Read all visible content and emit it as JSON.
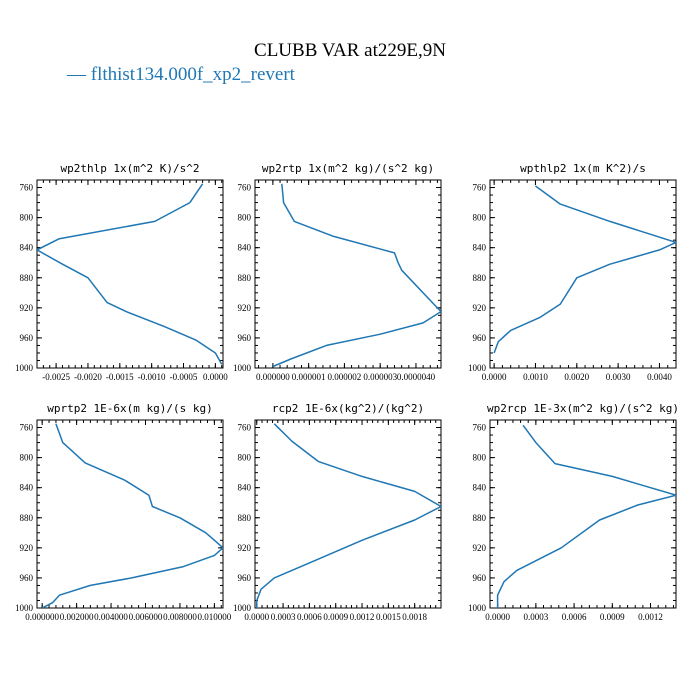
{
  "suptitle": "CLUBB VAR at229E,9N",
  "legend": {
    "label": "— flthist134.000f_xp2_revert",
    "color": "#1f77b4"
  },
  "series_color": "#1f77b4",
  "chart_data": [
    {
      "type": "line",
      "title": "wp2thlp  1x(m^2 K)/s^2",
      "xlim": [
        -0.0028,
        0.00012
      ],
      "ylim": [
        1000,
        750
      ],
      "xticks": [
        -0.0025,
        -0.002,
        -0.0015,
        -0.001,
        -0.0005,
        0.0
      ],
      "xtick_labels": [
        "-0.0025",
        "-0.0020",
        "-0.0015",
        "-0.0010",
        "-0.0005",
        "0.0000"
      ],
      "yticks": [
        760,
        800,
        840,
        880,
        920,
        960,
        1000
      ],
      "x": [
        -0.0002,
        -0.0004,
        -0.00095,
        -0.00245,
        -0.0028,
        -0.0024,
        -0.002,
        -0.0017,
        -0.0014,
        -0.0008,
        -0.0003,
        0.0,
        0.0001
      ],
      "y": [
        755,
        780,
        805,
        828,
        843,
        862,
        880,
        913,
        925,
        945,
        963,
        980,
        995
      ]
    },
    {
      "type": "line",
      "title": "wp2rtp  1x(m^2 kg)/(s^2 kg)",
      "xlim": [
        -5e-07,
        4.7e-06
      ],
      "ylim": [
        1000,
        750
      ],
      "xticks": [
        0.0,
        1e-06,
        2e-06,
        3e-06,
        4e-06
      ],
      "xtick_labels": [
        "0.000000",
        "0.000001",
        "0.000002",
        "0.000003",
        "0.0000040"
      ],
      "yticks": [
        760,
        800,
        840,
        880,
        920,
        960,
        1000
      ],
      "x": [
        2.5e-07,
        3e-07,
        6e-07,
        1.7e-06,
        3.4e-06,
        3.5e-06,
        3.6e-06,
        4.5e-06,
        4.7e-06,
        4.2e-06,
        3e-06,
        1.5e-06,
        5e-07,
        0.0
      ],
      "y": [
        755,
        780,
        805,
        825,
        847,
        860,
        870,
        915,
        925,
        940,
        955,
        970,
        988,
        998
      ]
    },
    {
      "type": "line",
      "title": "wpthlp2  1x(m K^2)/s",
      "xlim": [
        -0.0001,
        0.0044
      ],
      "ylim": [
        1000,
        750
      ],
      "xticks": [
        0.0,
        0.001,
        0.002,
        0.003,
        0.004
      ],
      "xtick_labels": [
        "0.0000",
        "0.0010",
        "0.0020",
        "0.0030",
        "0.0040"
      ],
      "yticks": [
        760,
        800,
        840,
        880,
        920,
        960,
        1000
      ],
      "x": [
        0.001,
        0.0016,
        0.0028,
        0.0044,
        0.004,
        0.0028,
        0.002,
        0.0016,
        0.0011,
        0.0004,
        0.0001,
        0.0
      ],
      "y": [
        758,
        782,
        805,
        833,
        843,
        862,
        880,
        915,
        933,
        950,
        965,
        980
      ]
    },
    {
      "type": "line",
      "title": "wprtp2  1E-6x(m kg)/(s kg)",
      "xlim": [
        -0.0003,
        0.0105
      ],
      "ylim": [
        1000,
        750
      ],
      "xticks": [
        0.0,
        0.002,
        0.004,
        0.006,
        0.008,
        0.01
      ],
      "xtick_labels": [
        "0.000000",
        "0.002000",
        "0.004000",
        "0.006000",
        "0.008000",
        "0.010000"
      ],
      "yticks": [
        760,
        800,
        840,
        880,
        920,
        960,
        1000
      ],
      "x": [
        0.0008,
        0.0012,
        0.0025,
        0.0048,
        0.0062,
        0.0064,
        0.008,
        0.0095,
        0.0105,
        0.01,
        0.0082,
        0.0052,
        0.0028,
        0.001,
        0.0006,
        0.0
      ],
      "y": [
        755,
        780,
        807,
        830,
        850,
        865,
        880,
        900,
        920,
        930,
        945,
        960,
        970,
        983,
        993,
        1000
      ]
    },
    {
      "type": "line",
      "title": "rcp2  1E-6x(kg^2)/(kg^2)",
      "xlim": [
        -2e-05,
        0.0021
      ],
      "ylim": [
        1000,
        750
      ],
      "xticks": [
        0.0,
        0.0003,
        0.0006,
        0.0009,
        0.0012,
        0.0015,
        0.0018
      ],
      "xtick_labels": [
        "0.0000",
        "0.0003",
        "0.0006",
        "0.0009",
        "0.0012",
        "0.0015",
        "0.0018"
      ],
      "yticks": [
        760,
        800,
        840,
        880,
        920,
        960,
        1000
      ],
      "x": [
        0.0002,
        0.0004,
        0.0007,
        0.0012,
        0.0018,
        0.0021,
        0.0018,
        0.0012,
        0.0006,
        0.0002,
        5e-05,
        0.0,
        0.0
      ],
      "y": [
        755,
        778,
        805,
        825,
        845,
        865,
        883,
        910,
        940,
        960,
        975,
        990,
        1000
      ]
    },
    {
      "type": "line",
      "title": "wp2rcp  1E-3x(m^2 kg)/(s^2 kg)",
      "xlim": [
        -6e-05,
        0.0014
      ],
      "ylim": [
        1000,
        750
      ],
      "xticks": [
        0.0,
        0.0003,
        0.0006,
        0.0009,
        0.0012
      ],
      "xtick_labels": [
        "0.0000",
        "0.0003",
        "0.0006",
        "0.0009",
        "0.0012"
      ],
      "yticks": [
        760,
        800,
        840,
        880,
        920,
        960,
        1000
      ],
      "x": [
        0.0002,
        0.0003,
        0.00045,
        0.0009,
        0.0014,
        0.0011,
        0.0008,
        0.0005,
        0.00015,
        5e-05,
        0.0,
        0.0
      ],
      "y": [
        757,
        780,
        808,
        825,
        850,
        863,
        883,
        920,
        950,
        965,
        983,
        1000
      ]
    }
  ]
}
